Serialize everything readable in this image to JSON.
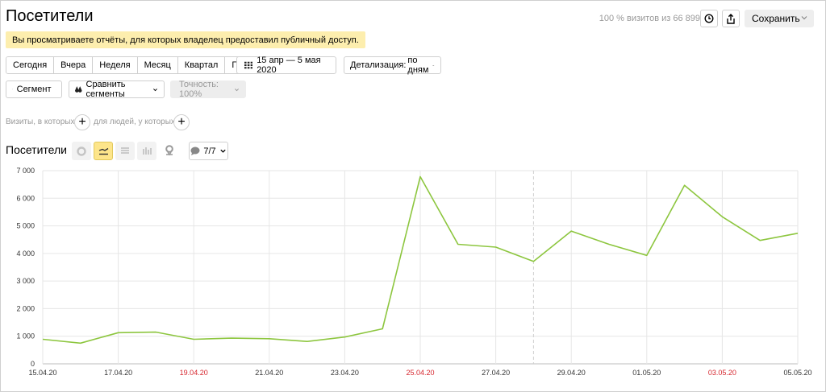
{
  "header": {
    "title": "Посетители",
    "visits_info": "100 % визитов из 66 899",
    "save_label": "Сохранить",
    "history_icon": "clock-icon",
    "share_icon": "share-icon"
  },
  "notice": "Вы просматриваете отчёты, для которых владелец предоставил публичный доступ.",
  "periods": [
    "Сегодня",
    "Вчера",
    "Неделя",
    "Месяц",
    "Квартал",
    "Год"
  ],
  "date_range": "15 апр — 5 мая 2020",
  "detail": {
    "label": "Детализация:",
    "value": "по дням"
  },
  "segment_label": "Сегмент",
  "compare_label": "Сравнить сегменты",
  "accuracy_label": "Точность: 100%",
  "filters": {
    "visits_label": "Визиты, в которых",
    "people_label": "для людей, у которых"
  },
  "chart_panel": {
    "title": "Посетители",
    "series_count": "7/7"
  },
  "colors": {
    "line": "#8dc63f",
    "weekend": "#d6262e",
    "notice_bg": "#fdeeae",
    "active_type": "#fde58a"
  },
  "chart_data": {
    "type": "line",
    "y_ticks": [
      "0",
      "1 000",
      "2 000",
      "3 000",
      "4 000",
      "5 000",
      "6 000",
      "7 000"
    ],
    "ylim": [
      0,
      7000
    ],
    "x_tick_labels": [
      {
        "i": 0,
        "label": "15.04.20",
        "weekend": false
      },
      {
        "i": 2,
        "label": "17.04.20",
        "weekend": false
      },
      {
        "i": 4,
        "label": "19.04.20",
        "weekend": true
      },
      {
        "i": 6,
        "label": "21.04.20",
        "weekend": false
      },
      {
        "i": 8,
        "label": "23.04.20",
        "weekend": false
      },
      {
        "i": 10,
        "label": "25.04.20",
        "weekend": true
      },
      {
        "i": 12,
        "label": "27.04.20",
        "weekend": false
      },
      {
        "i": 14,
        "label": "29.04.20",
        "weekend": false
      },
      {
        "i": 16,
        "label": "01.05.20",
        "weekend": false
      },
      {
        "i": 18,
        "label": "03.05.20",
        "weekend": true
      },
      {
        "i": 20,
        "label": "05.05.20",
        "weekend": false
      }
    ],
    "dashed_x_index": 13,
    "grid": true,
    "series": [
      {
        "values": [
          890,
          750,
          1130,
          1150,
          890,
          930,
          910,
          810,
          970,
          1270,
          6780,
          4330,
          4230,
          3710,
          4810,
          4330,
          3930,
          6470,
          5330,
          4470,
          4730
        ]
      }
    ]
  }
}
